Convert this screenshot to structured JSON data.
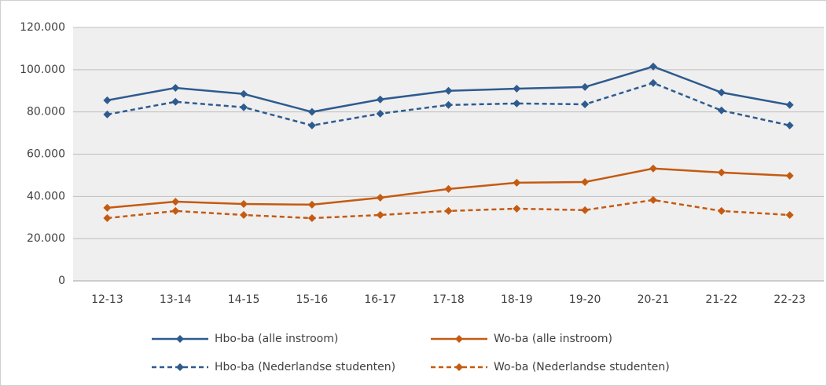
{
  "chart_data": {
    "type": "line",
    "categories": [
      "12-13",
      "13-14",
      "14-15",
      "15-16",
      "16-17",
      "17-18",
      "18-19",
      "19-20",
      "20-21",
      "21-22",
      "22-23"
    ],
    "series": [
      {
        "name": "Hbo-ba (alle instroom)",
        "color": "#2e5b8f",
        "dashed": false,
        "values": [
          85500,
          91400,
          88500,
          80000,
          85900,
          90000,
          91000,
          91800,
          101500,
          89200,
          83300
        ]
      },
      {
        "name": "Wo-ba (alle instroom)",
        "color": "#c55a11",
        "dashed": false,
        "values": [
          34600,
          37500,
          36400,
          36100,
          39400,
          43500,
          46500,
          46800,
          53200,
          51300,
          49800
        ]
      },
      {
        "name": "Hbo-ba (Nederlandse studenten)",
        "color": "#2e5b8f",
        "dashed": true,
        "values": [
          78800,
          84800,
          82200,
          73600,
          79200,
          83300,
          84000,
          83600,
          93700,
          80700,
          73600
        ]
      },
      {
        "name": "Wo-ba (Nederlandse studenten)",
        "color": "#c55a11",
        "dashed": true,
        "values": [
          29700,
          33100,
          31200,
          29700,
          31200,
          33100,
          34200,
          33500,
          38300,
          33100,
          31200
        ]
      }
    ],
    "ylim": [
      0,
      120000
    ],
    "yticks": [
      0,
      {
        "value": 20000,
        "label": "20.000"
      },
      {
        "value": 40000,
        "label": "40.000"
      },
      {
        "value": 60000,
        "label": "60.000"
      },
      {
        "value": 80000,
        "label": "80.000"
      },
      {
        "value": 100000,
        "label": "100.000"
      },
      {
        "value": 120000,
        "label": "120.000"
      }
    ],
    "grid": true,
    "legend": "bottom"
  }
}
